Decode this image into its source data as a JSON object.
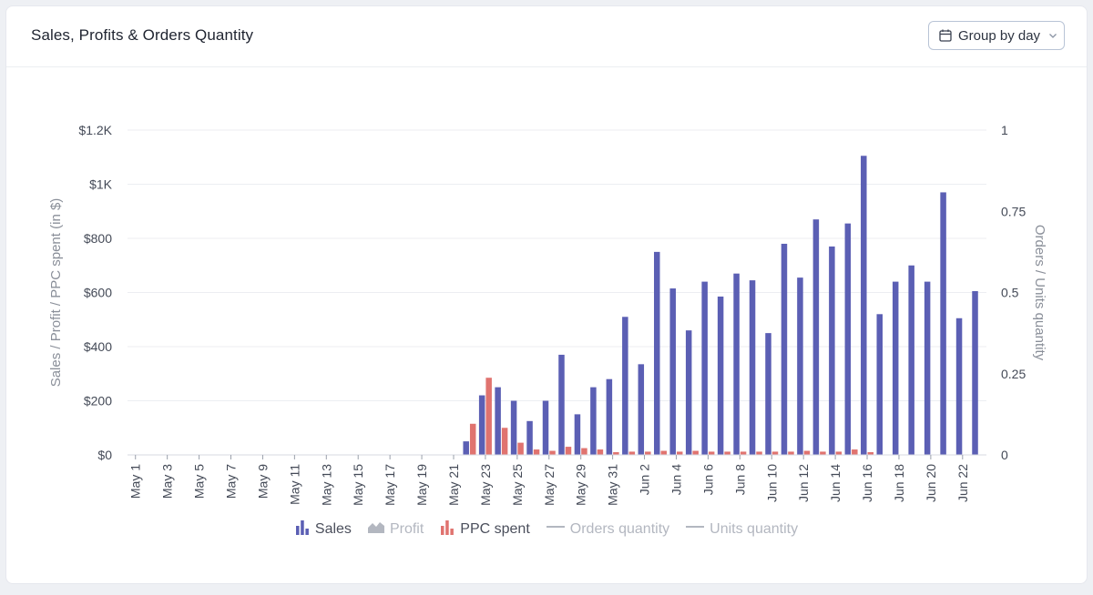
{
  "header": {
    "title": "Sales, Profits & Orders Quantity",
    "group_button_label": "Group by day"
  },
  "colors": {
    "sales": "#5b5fb4",
    "ppc": "#e0736f",
    "grid": "#eceef2",
    "axis_text": "#444a57",
    "axis_title": "#8a8f99",
    "legend_inactive": "#b3b7c0"
  },
  "legend": [
    {
      "key": "sales",
      "label": "Sales",
      "icon": "bar-chart-icon",
      "active": true
    },
    {
      "key": "profit",
      "label": "Profit",
      "icon": "area-chart-icon",
      "active": false
    },
    {
      "key": "ppc",
      "label": "PPC spent",
      "icon": "bar-chart-icon",
      "active": true
    },
    {
      "key": "orders",
      "label": "Orders quantity",
      "icon": "line-icon",
      "active": false
    },
    {
      "key": "units",
      "label": "Units quantity",
      "icon": "line-icon",
      "active": false
    }
  ],
  "chart_data": {
    "type": "bar",
    "ylabel": "Sales / Profit / PPC spent (in $)",
    "y2label": "Orders / Units quantity",
    "ylim": [
      0,
      1200
    ],
    "y_ticks": [
      0,
      200,
      400,
      600,
      800,
      1000,
      1200
    ],
    "y_tick_labels": [
      "$0",
      "$200",
      "$400",
      "$600",
      "$800",
      "$1K",
      "$1.2K"
    ],
    "y2lim": [
      0,
      1
    ],
    "y2_ticks": [
      0,
      0.25,
      0.5,
      0.75,
      1
    ],
    "y2_tick_labels": [
      "0",
      "0.25",
      "0.5",
      "0.75",
      "1"
    ],
    "grid": true,
    "categories": [
      "May 1",
      "May 2",
      "May 3",
      "May 4",
      "May 5",
      "May 6",
      "May 7",
      "May 8",
      "May 9",
      "May 10",
      "May 11",
      "May 12",
      "May 13",
      "May 14",
      "May 15",
      "May 16",
      "May 17",
      "May 18",
      "May 19",
      "May 20",
      "May 21",
      "May 22",
      "May 23",
      "May 24",
      "May 25",
      "May 26",
      "May 27",
      "May 28",
      "May 29",
      "May 30",
      "May 31",
      "Jun 1",
      "Jun 2",
      "Jun 3",
      "Jun 4",
      "Jun 5",
      "Jun 6",
      "Jun 7",
      "Jun 8",
      "Jun 9",
      "Jun 10",
      "Jun 11",
      "Jun 12",
      "Jun 13",
      "Jun 14",
      "Jun 15",
      "Jun 16",
      "Jun 17",
      "Jun 18",
      "Jun 19",
      "Jun 20",
      "Jun 21",
      "Jun 22",
      "Jun 23"
    ],
    "x_tick_labels": [
      "May 1",
      "May 3",
      "May 5",
      "May 7",
      "May 9",
      "May 11",
      "May 13",
      "May 15",
      "May 17",
      "May 19",
      "May 21",
      "May 23",
      "May 25",
      "May 27",
      "May 29",
      "May 31",
      "Jun 2",
      "Jun 4",
      "Jun 6",
      "Jun 8",
      "Jun 10",
      "Jun 12",
      "Jun 14",
      "Jun 16",
      "Jun 18",
      "Jun 20",
      "Jun 22"
    ],
    "series": [
      {
        "name": "Sales",
        "values": [
          0,
          0,
          0,
          0,
          0,
          0,
          0,
          0,
          0,
          0,
          0,
          0,
          0,
          0,
          0,
          0,
          0,
          0,
          0,
          0,
          0,
          50,
          220,
          250,
          200,
          125,
          200,
          370,
          150,
          250,
          280,
          510,
          335,
          750,
          615,
          460,
          640,
          585,
          670,
          645,
          450,
          780,
          655,
          870,
          770,
          855,
          1105,
          520,
          640,
          700,
          640,
          970,
          505,
          605
        ]
      },
      {
        "name": "PPC spent",
        "values": [
          0,
          0,
          0,
          0,
          0,
          0,
          0,
          0,
          0,
          0,
          0,
          0,
          0,
          0,
          0,
          0,
          0,
          0,
          0,
          0,
          0,
          115,
          285,
          100,
          45,
          20,
          15,
          30,
          25,
          20,
          10,
          12,
          12,
          15,
          12,
          15,
          12,
          12,
          12,
          12,
          12,
          12,
          15,
          12,
          12,
          20,
          10,
          0,
          0,
          0,
          0,
          0,
          0,
          0
        ]
      }
    ]
  }
}
